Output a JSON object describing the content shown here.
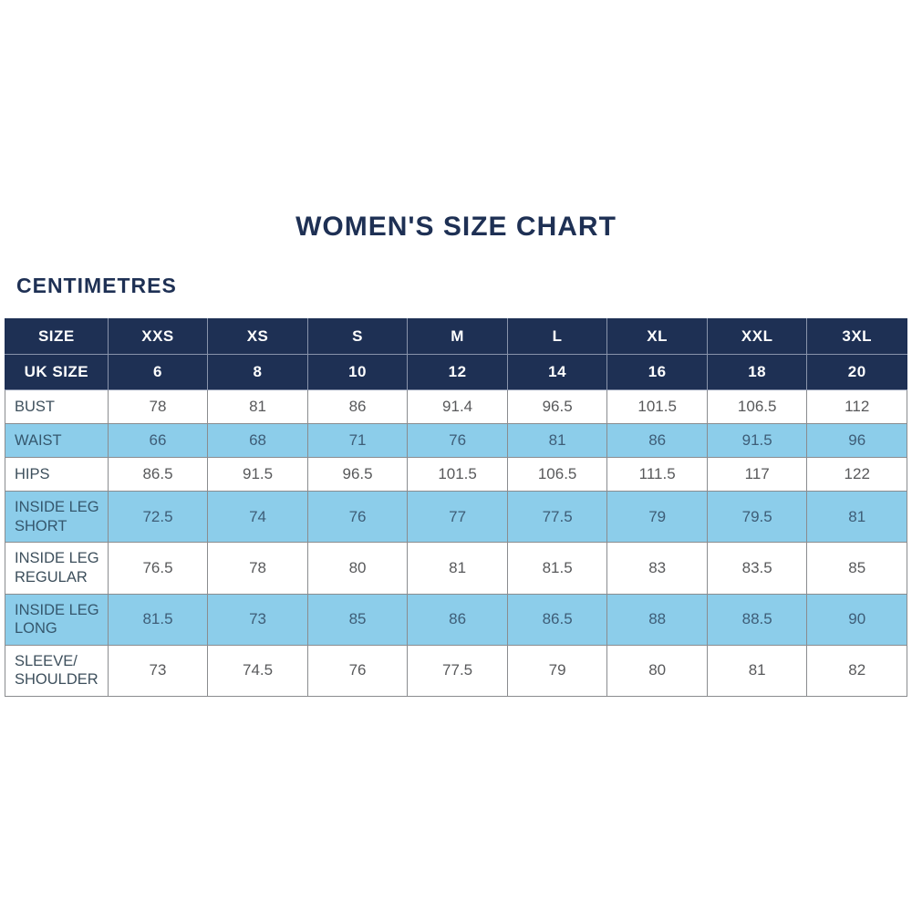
{
  "page": {
    "title": "WOMEN'S SIZE CHART",
    "units_label": "CENTIMETRES"
  },
  "colors": {
    "navy": "#1e3054",
    "light_blue": "#8ccdea",
    "header_text": "#ffffff",
    "body_text": "#58595b",
    "blue_row_text": "#3e5d77",
    "border_gray": "#8a8c8f"
  },
  "chart_data": {
    "type": "table",
    "title": "WOMEN'S SIZE CHART",
    "units": "CENTIMETRES",
    "header_rows": [
      {
        "label": "SIZE",
        "values": [
          "XXS",
          "XS",
          "S",
          "M",
          "L",
          "XL",
          "XXL",
          "3XL"
        ]
      },
      {
        "label": "UK SIZE",
        "values": [
          "6",
          "8",
          "10",
          "12",
          "14",
          "16",
          "18",
          "20"
        ]
      }
    ],
    "rows": [
      {
        "label": "BUST",
        "highlight": false,
        "values": [
          "78",
          "81",
          "86",
          "91.4",
          "96.5",
          "101.5",
          "106.5",
          "112"
        ]
      },
      {
        "label": "WAIST",
        "highlight": true,
        "values": [
          "66",
          "68",
          "71",
          "76",
          "81",
          "86",
          "91.5",
          "96"
        ]
      },
      {
        "label": "HIPS",
        "highlight": false,
        "values": [
          "86.5",
          "91.5",
          "96.5",
          "101.5",
          "106.5",
          "111.5",
          "117",
          "122"
        ]
      },
      {
        "label": "INSIDE LEG SHORT",
        "highlight": true,
        "values": [
          "72.5",
          "74",
          "76",
          "77",
          "77.5",
          "79",
          "79.5",
          "81"
        ]
      },
      {
        "label": "INSIDE LEG REGULAR",
        "highlight": false,
        "values": [
          "76.5",
          "78",
          "80",
          "81",
          "81.5",
          "83",
          "83.5",
          "85"
        ]
      },
      {
        "label": "INSIDE LEG LONG",
        "highlight": true,
        "values": [
          "81.5",
          "73",
          "85",
          "86",
          "86.5",
          "88",
          "88.5",
          "90"
        ]
      },
      {
        "label": "SLEEVE/ SHOULDER",
        "highlight": false,
        "values": [
          "73",
          "74.5",
          "76",
          "77.5",
          "79",
          "80",
          "81",
          "82"
        ]
      }
    ]
  }
}
